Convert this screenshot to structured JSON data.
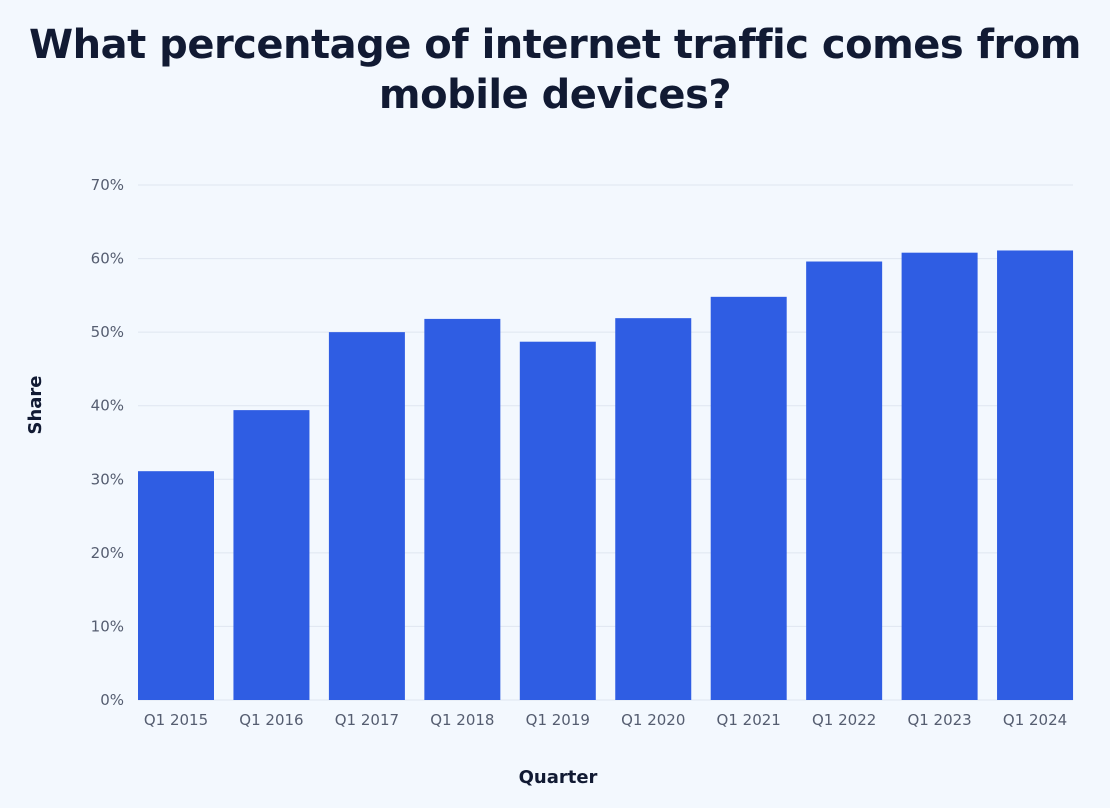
{
  "chart_data": {
    "type": "bar",
    "title": "What percentage of internet traffic comes from mobile devices?",
    "xlabel": "Quarter",
    "ylabel": "Share",
    "categories": [
      "Q1 2015",
      "Q1 2016",
      "Q1 2017",
      "Q1 2018",
      "Q1 2019",
      "Q1 2020",
      "Q1 2021",
      "Q1 2022",
      "Q1 2023",
      "Q1 2024"
    ],
    "values": [
      31.1,
      39.4,
      50.0,
      51.8,
      48.7,
      51.9,
      54.8,
      59.6,
      60.8,
      61.1
    ],
    "ylim": [
      0,
      70
    ],
    "yticks": [
      "0%",
      "10%",
      "20%",
      "30%",
      "40%",
      "50%",
      "60%",
      "70%"
    ],
    "grid": true,
    "colors": {
      "bar": "#2f5de3",
      "background": "#f3f8fe",
      "title": "#111a33",
      "grid": "#dfe6f0"
    }
  }
}
